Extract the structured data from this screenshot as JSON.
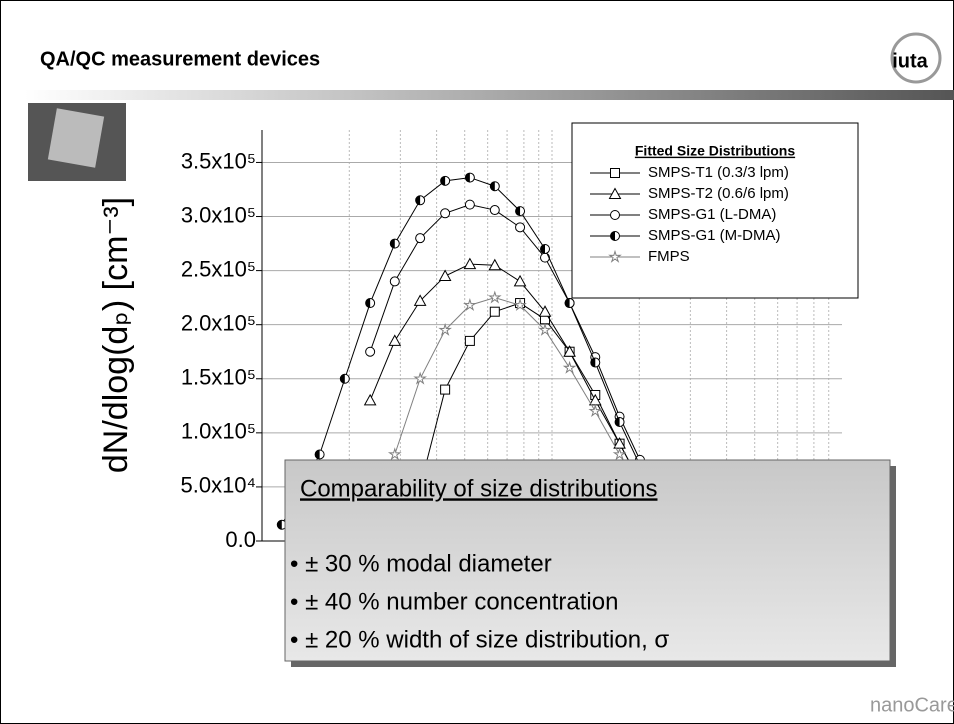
{
  "slide": {
    "title": "QA/QC measurement devices",
    "logo": "iuta",
    "footer_logo": "nanoCare",
    "box": {
      "heading": "Comparability of size distributions",
      "bullets": [
        "• ± 30 % modal diameter",
        "• ± 40 % number concentration",
        "• ± 20 % width of size distribution, σ"
      ]
    }
  },
  "chart_data": {
    "type": "scatter-line",
    "ylabel": "dN/dlog(dₚ) [cm⁻³]",
    "legend_title": "Fitted Size Distributions",
    "xlog": true,
    "xlim": [
      10,
      1000
    ],
    "xticks": [
      20,
      30,
      40,
      50,
      60,
      70,
      80,
      90,
      100,
      200,
      300,
      400,
      500,
      600,
      700,
      800,
      900
    ],
    "ylim": [
      0,
      380000
    ],
    "yticks": [
      {
        "value": 0,
        "label": "0.0"
      },
      {
        "value": 50000,
        "label": "5.0x10⁴"
      },
      {
        "value": 100000,
        "label": "1.0x10⁵"
      },
      {
        "value": 150000,
        "label": "1.5x10⁵"
      },
      {
        "value": 200000,
        "label": "2.0x10⁵"
      },
      {
        "value": 250000,
        "label": "2.5x10⁵"
      },
      {
        "value": 300000,
        "label": "3.0x10⁵"
      },
      {
        "value": 350000,
        "label": "3.5x10⁵"
      }
    ],
    "grid": true,
    "legend": "top-right",
    "x": [
      11.7,
      15.8,
      19.3,
      23.6,
      28.7,
      35.1,
      42.8,
      52.1,
      63.5,
      77.6,
      94.6,
      115,
      141,
      171,
      201
    ],
    "series": [
      {
        "name": "SMPS-T1 (0.3/3 lpm)",
        "color": "#000000",
        "marker": "square",
        "values": [
          null,
          null,
          null,
          null,
          null,
          50000,
          140000,
          185000,
          212000,
          220000,
          205000,
          175000,
          135000,
          90000,
          55000
        ]
      },
      {
        "name": "SMPS-T2 (0.6/6 lpm)",
        "color": "#000000",
        "marker": "triangle",
        "values": [
          null,
          null,
          null,
          130000,
          185000,
          222000,
          245000,
          256000,
          255000,
          240000,
          212000,
          175000,
          130000,
          90000,
          55000
        ]
      },
      {
        "name": "SMPS-G1 (L-DMA)",
        "color": "#000000",
        "marker": "circle",
        "values": [
          null,
          null,
          null,
          175000,
          240000,
          280000,
          303000,
          311000,
          306000,
          290000,
          262000,
          220000,
          170000,
          115000,
          75000
        ]
      },
      {
        "name": "SMPS-G1 (M-DMA)",
        "color": "#000000",
        "marker": "half",
        "values": [
          15000,
          80000,
          150000,
          220000,
          275000,
          315000,
          333000,
          336000,
          328000,
          305000,
          270000,
          220000,
          165000,
          110000,
          70000
        ]
      },
      {
        "name": "FMPS",
        "color": "#808080",
        "marker": "star",
        "values": [
          null,
          null,
          null,
          null,
          80000,
          150000,
          195000,
          218000,
          225000,
          218000,
          195000,
          160000,
          120000,
          80000,
          50000
        ]
      }
    ]
  }
}
